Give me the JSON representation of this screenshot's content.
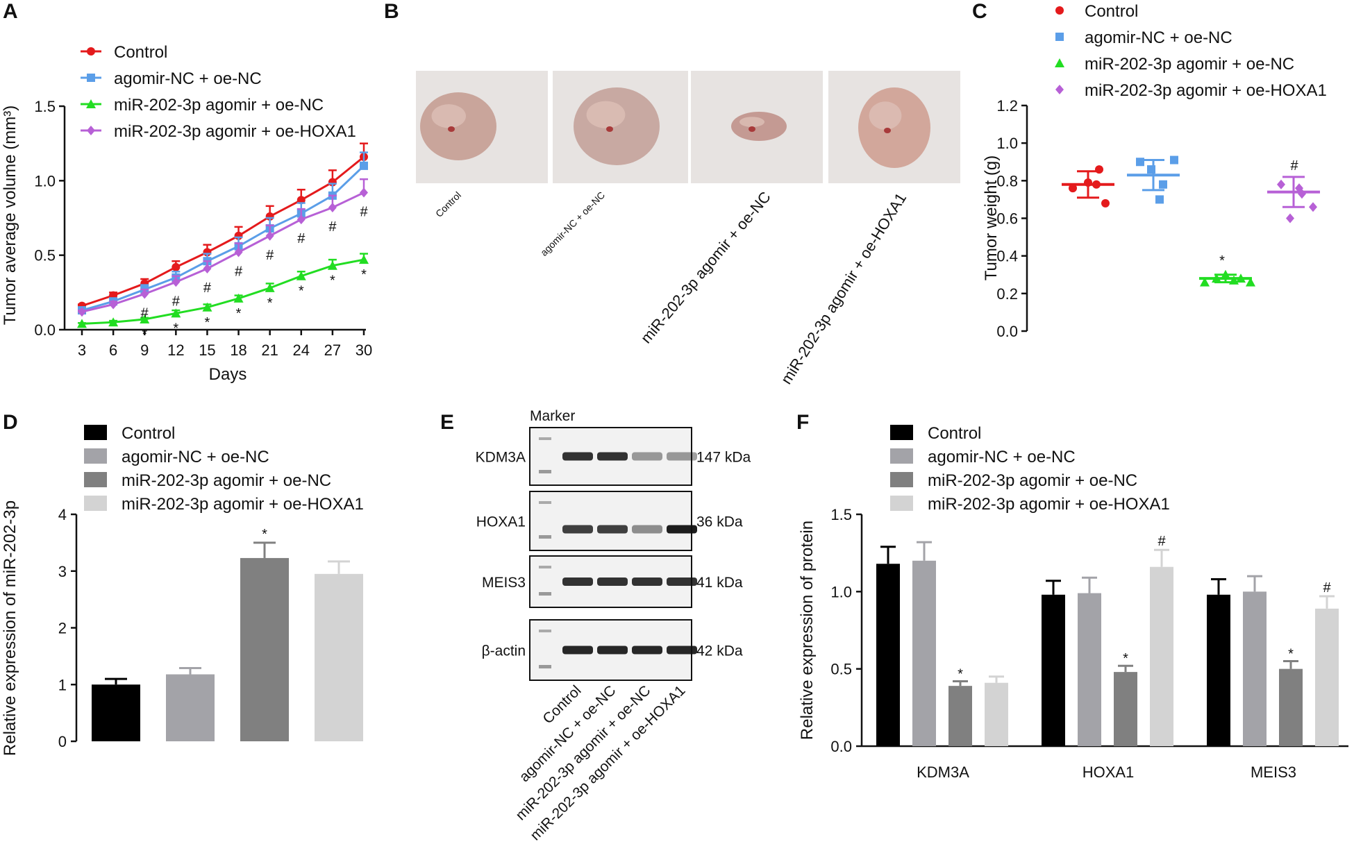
{
  "groups": [
    "Control",
    "agomir-NC + oe-NC",
    "miR-202-3p agomir + oe-NC",
    "miR-202-3p agomir + oe-HOXA1"
  ],
  "colors": {
    "panelA": [
      "#e41a1c",
      "#5b9ee8",
      "#22dd22",
      "#b760d6"
    ],
    "grays": [
      "#000000",
      "#a3a3a8",
      "#808080",
      "#d3d3d3"
    ]
  },
  "panel_labels": {
    "A": "A",
    "B": "B",
    "C": "C",
    "D": "D",
    "E": "E",
    "F": "F"
  },
  "chart_data": [
    {
      "panel": "A",
      "type": "line",
      "xlabel": "Days",
      "ylabel": "Tumor average volume (mm³)",
      "x": [
        3,
        6,
        9,
        12,
        15,
        18,
        21,
        24,
        27,
        30
      ],
      "xlim": [
        3,
        30
      ],
      "ylim": [
        0,
        1.5
      ],
      "yticks": [
        "0.0",
        "0.5",
        "1.0",
        "1.5"
      ],
      "series": [
        {
          "name": "Control",
          "values": [
            0.16,
            0.23,
            0.31,
            0.42,
            0.52,
            0.63,
            0.76,
            0.87,
            0.99,
            1.16
          ],
          "err": [
            0.01,
            0.02,
            0.03,
            0.04,
            0.05,
            0.06,
            0.07,
            0.07,
            0.08,
            0.09
          ]
        },
        {
          "name": "agomir-NC + oe-NC",
          "values": [
            0.13,
            0.19,
            0.27,
            0.35,
            0.46,
            0.56,
            0.68,
            0.78,
            0.9,
            1.1
          ],
          "err": [
            0.01,
            0.02,
            0.03,
            0.04,
            0.05,
            0.06,
            0.07,
            0.07,
            0.08,
            0.09
          ]
        },
        {
          "name": "miR-202-3p agomir + oe-NC",
          "values": [
            0.04,
            0.05,
            0.07,
            0.11,
            0.15,
            0.21,
            0.28,
            0.36,
            0.43,
            0.47
          ],
          "err": [
            0.005,
            0.01,
            0.01,
            0.02,
            0.02,
            0.02,
            0.03,
            0.03,
            0.04,
            0.04
          ]
        },
        {
          "name": "miR-202-3p agomir + oe-HOXA1",
          "values": [
            0.12,
            0.17,
            0.24,
            0.32,
            0.41,
            0.52,
            0.63,
            0.74,
            0.82,
            0.92
          ],
          "err": [
            0.01,
            0.02,
            0.03,
            0.04,
            0.05,
            0.06,
            0.07,
            0.07,
            0.08,
            0.09
          ]
        }
      ],
      "annotations": {
        "hash_x": [
          9,
          12,
          15,
          18,
          21,
          24,
          27,
          30
        ],
        "star_x": [
          9,
          12,
          15,
          18,
          21,
          24,
          27,
          30
        ],
        "hash": "#",
        "star": "*"
      }
    },
    {
      "panel": "C",
      "type": "scatter",
      "xlabel": "",
      "ylabel": "Tumor weight (g)",
      "ylim": [
        0,
        1.2
      ],
      "yticks": [
        "0.0",
        "0.2",
        "0.4",
        "0.6",
        "0.8",
        "1.0",
        "1.2"
      ],
      "series": [
        {
          "name": "Control",
          "mean": 0.78,
          "sd": 0.07,
          "points": [
            0.76,
            0.86,
            0.79,
            0.68,
            0.78
          ]
        },
        {
          "name": "agomir-NC + oe-NC",
          "mean": 0.83,
          "sd": 0.08,
          "points": [
            0.9,
            0.78,
            0.91,
            0.86,
            0.7
          ]
        },
        {
          "name": "miR-202-3p agomir + oe-NC",
          "mean": 0.28,
          "sd": 0.02,
          "points": [
            0.26,
            0.28,
            0.3,
            0.28,
            0.26,
            0.27
          ]
        },
        {
          "name": "miR-202-3p agomir + oe-HOXA1",
          "mean": 0.74,
          "sd": 0.08,
          "points": [
            0.78,
            0.76,
            0.66,
            0.6,
            0.73
          ]
        }
      ],
      "annotations": {
        "star": "*",
        "hash": "#"
      }
    },
    {
      "panel": "D",
      "type": "bar",
      "xlabel": "",
      "ylabel": "Relative expression of miR-202-3p",
      "categories": [
        "Control",
        "agomir-NC + oe-NC",
        "miR-202-3p agomir + oe-NC",
        "miR-202-3p agomir + oe-HOXA1"
      ],
      "values": [
        1.0,
        1.18,
        3.23,
        2.95
      ],
      "err": [
        0.1,
        0.11,
        0.27,
        0.22
      ],
      "ylim": [
        0,
        4
      ],
      "yticks": [
        "0",
        "1",
        "2",
        "3",
        "4"
      ],
      "annotations": {
        "star": "*"
      }
    },
    {
      "panel": "F",
      "type": "bar",
      "xlabel": "",
      "ylabel": "Relative expression of protein",
      "categories": [
        "KDM3A",
        "HOXA1",
        "MEIS3"
      ],
      "series": [
        {
          "name": "Control",
          "values": [
            1.18,
            0.98,
            0.98
          ],
          "err": [
            0.11,
            0.09,
            0.1
          ]
        },
        {
          "name": "agomir-NC + oe-NC",
          "values": [
            1.2,
            0.99,
            1.0
          ],
          "err": [
            0.12,
            0.1,
            0.1
          ]
        },
        {
          "name": "miR-202-3p agomir + oe-NC",
          "values": [
            0.39,
            0.48,
            0.5
          ],
          "err": [
            0.03,
            0.04,
            0.05
          ]
        },
        {
          "name": "miR-202-3p agomir + oe-HOXA1",
          "values": [
            0.41,
            1.16,
            0.89
          ],
          "err": [
            0.04,
            0.11,
            0.08
          ]
        }
      ],
      "ylim": [
        0,
        1.5
      ],
      "yticks": [
        "0.0",
        "0.5",
        "1.0",
        "1.5"
      ],
      "annotations": {
        "star": "*",
        "hash": "#"
      }
    }
  ],
  "panelB": {
    "photo_labels": [
      "Control",
      "agomir-NC + oe-NC",
      "miR-202-3p agomir + oe-NC",
      "miR-202-3p agomir + oe-HOXA1"
    ]
  },
  "panelE": {
    "marker_label": "Marker",
    "bands": [
      {
        "protein": "KDM3A",
        "kda": "147 kDa",
        "intensity": [
          0.85,
          0.85,
          0.4,
          0.4
        ]
      },
      {
        "protein": "HOXA1",
        "kda": "36 kDa",
        "intensity": [
          0.8,
          0.8,
          0.45,
          0.95
        ]
      },
      {
        "protein": "MEIS3",
        "kda": "41 kDa",
        "intensity": [
          0.85,
          0.85,
          0.85,
          0.85
        ]
      },
      {
        "protein": "β-actin",
        "kda": "42 kDa",
        "intensity": [
          0.9,
          0.9,
          0.9,
          0.9
        ]
      }
    ],
    "lane_labels": [
      "Control",
      "agomir-NC + oe-NC",
      "miR-202-3p agomir + oe-NC",
      "miR-202-3p agomir + oe-HOXA1"
    ]
  }
}
